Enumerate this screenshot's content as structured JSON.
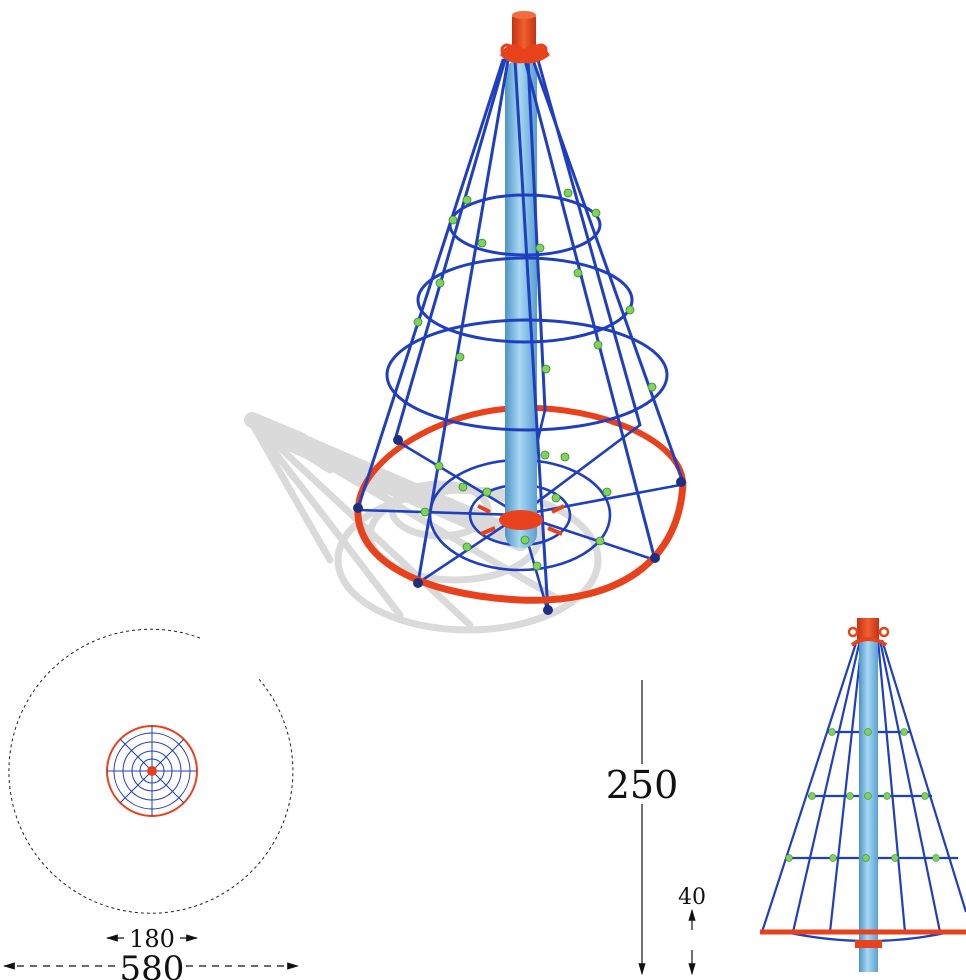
{
  "dimensions": {
    "height_total": "250",
    "ring_height": "40",
    "inner_diameter": "180",
    "safety_diameter": "580"
  },
  "colors": {
    "net": "#1f3fbf",
    "pole": "#7cc0e8",
    "pole_shade": "#4e93c4",
    "ring": "#e8421c",
    "ring_dark": "#b82e10",
    "connector": "#7fd35a",
    "shadow": "#d9d9d9",
    "dim_line": "#111111"
  },
  "icons": {
    "perspective": "cone-climbing-net-3d",
    "top_view": "top-view-plan",
    "side_view": "side-elevation"
  }
}
